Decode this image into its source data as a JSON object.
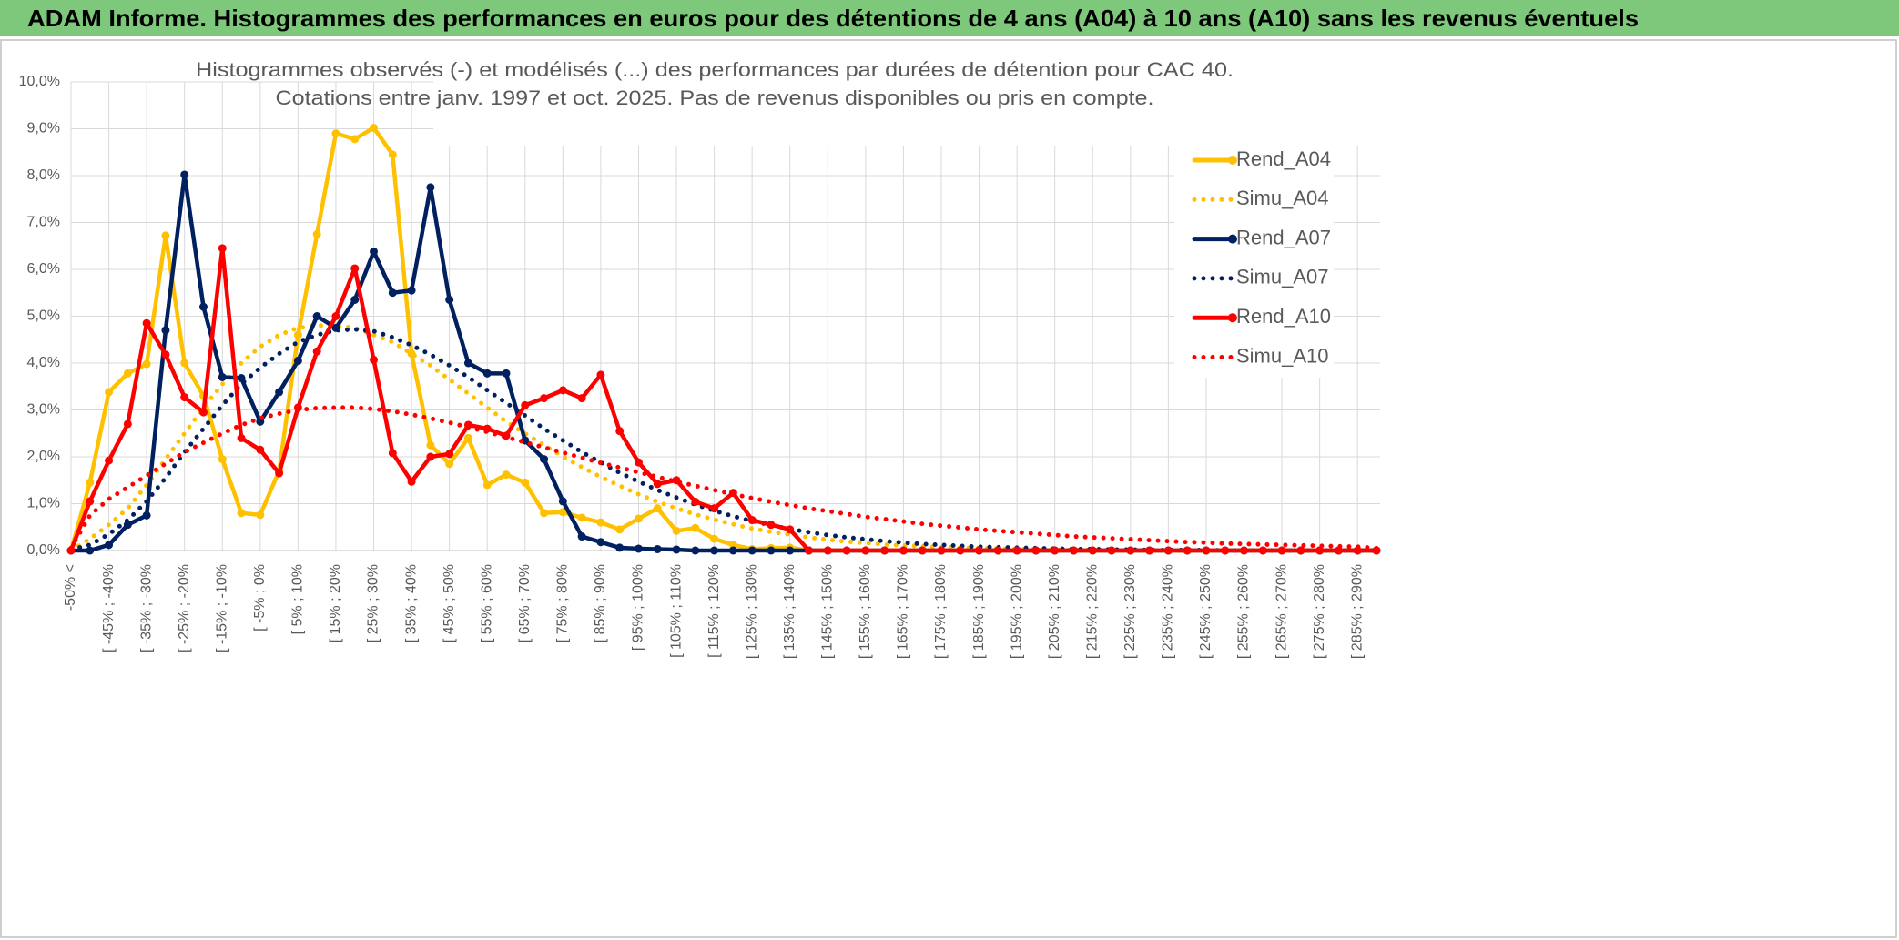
{
  "chart_data": {
    "type": "line",
    "header": "ADAM Informe. Histogrammes des performances en euros pour des détentions de 4 ans (A04) à 10 ans (A10) sans les revenus éventuels",
    "title": [
      "Histogrammes observés (-) et modélisés (...) des performances par durées de détention pour CAC 40.",
      "Cotations entre janv. 1997 et oct. 2025. Pas de revenus disponibles ou pris en compte."
    ],
    "categories": [
      "-50% <",
      null,
      "[ -45% ; -40%",
      null,
      "[ -35% ; -30%",
      null,
      "[ -25% ; -20%",
      null,
      "[ -15% ; -10%",
      null,
      "[ -5% ; 0%",
      null,
      "[ 5% ; 10%",
      null,
      "[ 15% ; 20%",
      null,
      "[ 25% ; 30%",
      null,
      "[ 35% ; 40%",
      null,
      "[ 45% ; 50%",
      null,
      "[ 55% ; 60%",
      null,
      "[ 65% ; 70%",
      null,
      "[ 75% ; 80%",
      null,
      "[ 85% ; 90%",
      null,
      "[ 95% ; 100%",
      null,
      "[ 105% ; 110%",
      null,
      "[ 115% ; 120%",
      null,
      "[ 125% ; 130%",
      null,
      "[ 135% ; 140%",
      null,
      "[ 145% ; 150%",
      null,
      "[ 155% ; 160%",
      null,
      "[ 165% ; 170%",
      null,
      "[ 175% ; 180%",
      null,
      "[ 185% ; 190%",
      null,
      "[ 195% ; 200%",
      null,
      "[ 205% ; 210%",
      null,
      "[ 215% ; 220%",
      null,
      "[ 225% ; 230%",
      null,
      "[ 235% ; 240%",
      null,
      "[ 245% ; 250%",
      null,
      "[ 255% ; 260%",
      null,
      "[ 265% ; 270%",
      null,
      "[ 275% ; 280%",
      null,
      "[ 285% ; 290%",
      null
    ],
    "ylim": [
      0,
      10
    ],
    "yticks": [
      {
        "value": 0,
        "label": "0,0%"
      },
      {
        "value": 1,
        "label": "1,0%"
      },
      {
        "value": 2,
        "label": "2,0%"
      },
      {
        "value": 3,
        "label": "3,0%"
      },
      {
        "value": 4,
        "label": "4,0%"
      },
      {
        "value": 5,
        "label": "5,0%"
      },
      {
        "value": 6,
        "label": "6,0%"
      },
      {
        "value": 7,
        "label": "7,0%"
      },
      {
        "value": 8,
        "label": "8,0%"
      },
      {
        "value": 9,
        "label": "9,0%"
      },
      {
        "value": 10,
        "label": "10,0%"
      }
    ],
    "grid": true,
    "legend": "right",
    "series": [
      {
        "name": "Rend_A04",
        "color": "#FFC000",
        "style": "solid",
        "markers": true,
        "values": [
          0,
          1.45,
          3.38,
          3.78,
          3.98,
          6.72,
          4.0,
          3.3,
          1.95,
          0.8,
          0.76,
          1.7,
          4.6,
          6.75,
          8.9,
          8.78,
          9.02,
          8.45,
          4.2,
          2.25,
          1.85,
          2.4,
          1.4,
          1.62,
          1.45,
          0.8,
          0.82,
          0.7,
          0.6,
          0.45,
          0.68,
          0.9,
          0.42,
          0.48,
          0.25,
          0.12,
          0.03,
          0.05,
          0.06,
          0,
          0,
          0,
          0,
          0,
          0,
          0,
          0,
          0,
          0,
          0,
          0,
          0,
          0,
          0,
          0,
          0,
          0,
          0,
          0,
          0,
          0,
          0,
          0,
          0,
          0,
          0,
          0,
          0,
          0,
          0
        ]
      },
      {
        "name": "Simu_A04",
        "color": "#FFC000",
        "style": "dotted",
        "markers": false,
        "values": [
          0,
          0.25,
          0.55,
          0.9,
          1.4,
          1.95,
          2.5,
          3.05,
          3.55,
          4.0,
          4.35,
          4.6,
          4.75,
          4.8,
          4.8,
          4.75,
          4.6,
          4.45,
          4.2,
          3.95,
          3.65,
          3.35,
          3.05,
          2.75,
          2.5,
          2.25,
          2.0,
          1.78,
          1.57,
          1.38,
          1.2,
          1.04,
          0.9,
          0.77,
          0.66,
          0.56,
          0.47,
          0.4,
          0.34,
          0.28,
          0.23,
          0.19,
          0.16,
          0.13,
          0.11,
          0.09,
          0.07,
          0.06,
          0.05,
          0.04,
          0.03,
          0.02,
          0.02,
          0.01,
          0.01,
          0,
          0,
          0,
          0,
          0,
          0,
          0,
          0,
          0,
          0,
          0,
          0,
          0,
          0,
          0
        ]
      },
      {
        "name": "Rend_A07",
        "color": "#002060",
        "style": "solid",
        "markers": true,
        "values": [
          0,
          0,
          0.12,
          0.55,
          0.75,
          4.7,
          8.02,
          5.2,
          3.7,
          3.68,
          2.75,
          3.38,
          4.05,
          5.0,
          4.75,
          5.35,
          6.38,
          5.5,
          5.55,
          7.75,
          5.35,
          4.0,
          3.78,
          3.78,
          2.35,
          1.95,
          1.05,
          0.3,
          0.18,
          0.06,
          0.04,
          0.03,
          0.02,
          0,
          0,
          0,
          0,
          0,
          0,
          0,
          0,
          0,
          0,
          0,
          0,
          0,
          0,
          0,
          0,
          0,
          0,
          0,
          0,
          0,
          0,
          0,
          0,
          0,
          0,
          0,
          0,
          0,
          0,
          0,
          0,
          0,
          0,
          0,
          0,
          0
        ]
      },
      {
        "name": "Simu_A07",
        "color": "#002060",
        "style": "dotted",
        "markers": false,
        "values": [
          0.02,
          0.12,
          0.35,
          0.65,
          1.05,
          1.55,
          2.1,
          2.6,
          3.1,
          3.55,
          3.9,
          4.2,
          4.45,
          4.6,
          4.7,
          4.72,
          4.68,
          4.55,
          4.38,
          4.18,
          3.95,
          3.7,
          3.42,
          3.15,
          2.88,
          2.6,
          2.35,
          2.1,
          1.88,
          1.66,
          1.47,
          1.29,
          1.13,
          0.98,
          0.85,
          0.73,
          0.63,
          0.54,
          0.46,
          0.39,
          0.33,
          0.28,
          0.24,
          0.2,
          0.17,
          0.14,
          0.12,
          0.1,
          0.08,
          0.07,
          0.06,
          0.05,
          0.04,
          0.03,
          0.03,
          0.02,
          0.02,
          0.01,
          0.01,
          0.01,
          0.01,
          0,
          0,
          0,
          0,
          0,
          0,
          0,
          0,
          0
        ]
      },
      {
        "name": "Rend_A10",
        "color": "#FF0000",
        "style": "solid",
        "markers": true,
        "values": [
          0,
          1.05,
          1.92,
          2.7,
          4.85,
          4.18,
          3.27,
          2.95,
          6.45,
          2.4,
          2.15,
          1.65,
          3.05,
          4.25,
          5.0,
          6.02,
          4.07,
          2.08,
          1.47,
          2.0,
          2.06,
          2.68,
          2.6,
          2.45,
          3.1,
          3.25,
          3.42,
          3.25,
          3.75,
          2.55,
          1.88,
          1.42,
          1.5,
          1.04,
          0.9,
          1.23,
          0.65,
          0.55,
          0.45,
          0,
          0,
          0,
          0,
          0,
          0,
          0,
          0,
          0,
          0,
          0,
          0,
          0,
          0,
          0,
          0,
          0,
          0,
          0,
          0,
          0,
          0,
          0,
          0,
          0,
          0,
          0,
          0,
          0,
          0,
          0
        ]
      },
      {
        "name": "Simu_A10",
        "color": "#FF0000",
        "style": "dotted",
        "markers": false,
        "values": [
          0.05,
          0.75,
          1.1,
          1.35,
          1.6,
          1.85,
          2.1,
          2.3,
          2.5,
          2.68,
          2.82,
          2.92,
          3.0,
          3.04,
          3.05,
          3.05,
          3.02,
          2.97,
          2.9,
          2.82,
          2.73,
          2.63,
          2.53,
          2.42,
          2.31,
          2.2,
          2.09,
          1.98,
          1.87,
          1.77,
          1.67,
          1.57,
          1.47,
          1.38,
          1.29,
          1.2,
          1.12,
          1.04,
          0.97,
          0.9,
          0.84,
          0.78,
          0.72,
          0.67,
          0.62,
          0.57,
          0.53,
          0.49,
          0.45,
          0.42,
          0.39,
          0.36,
          0.33,
          0.3,
          0.28,
          0.26,
          0.24,
          0.22,
          0.2,
          0.18,
          0.17,
          0.15,
          0.14,
          0.13,
          0.12,
          0.11,
          0.1,
          0.09,
          0.08,
          0.05
        ]
      }
    ]
  }
}
